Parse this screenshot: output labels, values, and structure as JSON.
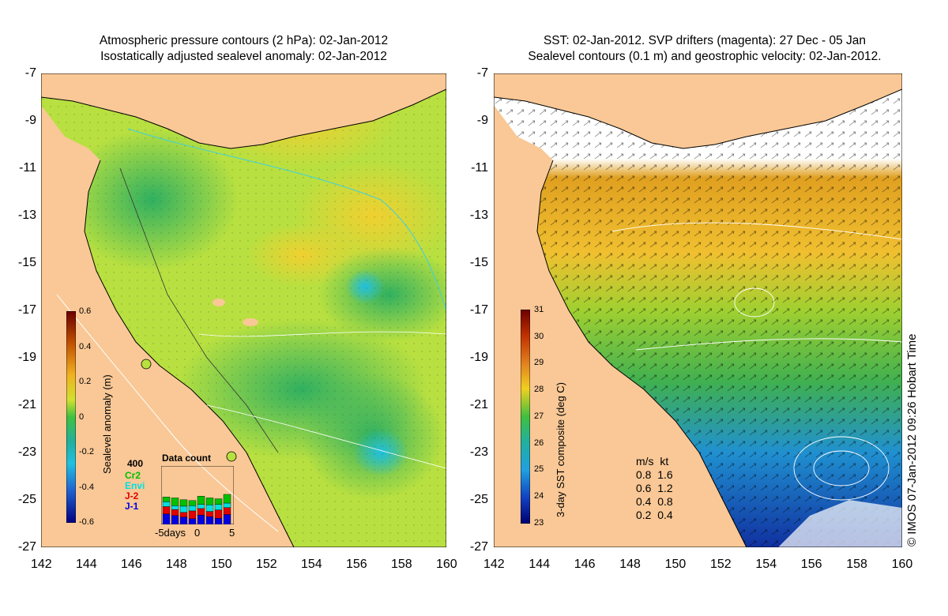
{
  "left_panel": {
    "title_line1": "Atmospheric pressure contours (2 hPa): 02-Jan-2012",
    "title_line2": "Isostatically adjusted sealevel anomaly: 02-Jan-2012",
    "colorbar_label": "Sealevel anomaly (m)",
    "colorbar_ticks": [
      "0.6",
      "0.4",
      "0.2",
      "0",
      "-0.2",
      "-0.4",
      "-0.6"
    ],
    "data_count": {
      "title": "Data count",
      "max_label": "400",
      "missions": [
        {
          "name": "Cr2",
          "color": "#00c000"
        },
        {
          "name": "Envi",
          "color": "#00e0e0"
        },
        {
          "name": "J-2",
          "color": "#e00000"
        },
        {
          "name": "J-1",
          "color": "#0000e0"
        }
      ],
      "axis_labels": [
        "-5days",
        "0",
        "5"
      ]
    }
  },
  "right_panel": {
    "title_line1": "SST: 02-Jan-2012. SVP drifters (magenta): 27 Dec - 05 Jan",
    "title_line2": "Sealevel contours (0.1 m) and geostrophic velocity: 02-Jan-2012.",
    "colorbar_label": "3-day SST composite (deg C)",
    "colorbar_ticks": [
      "31",
      "30",
      "29",
      "28",
      "27",
      "26",
      "25",
      "24",
      "23"
    ],
    "velocity_legend": {
      "header": "m/s  kt",
      "rows": [
        "0.8  1.6",
        "0.6  1.2",
        "0.4  0.8",
        "0.2  0.4"
      ]
    },
    "credit": "© IMOS 07-Jan-2012 09:26 Hobart Time"
  },
  "axes": {
    "x_ticks": [
      "142",
      "144",
      "146",
      "148",
      "150",
      "152",
      "154",
      "156",
      "158",
      "160"
    ],
    "y_ticks": [
      "-7",
      "-9",
      "-11",
      "-13",
      "-15",
      "-17",
      "-19",
      "-21",
      "-23",
      "-25",
      "-27"
    ]
  },
  "colors": {
    "land": "#f9c896",
    "anomaly_scale": [
      "#6b0000",
      "#c05000",
      "#f0a020",
      "#f0e020",
      "#a0e030",
      "#40c040",
      "#20b090",
      "#20c0e0",
      "#2060d0",
      "#000080"
    ],
    "sst_scale": [
      "#6b0000",
      "#c03000",
      "#e08020",
      "#f0d020",
      "#b0e030",
      "#40c040",
      "#20b0a0",
      "#20a0e0",
      "#1040c0",
      "#000070"
    ]
  }
}
